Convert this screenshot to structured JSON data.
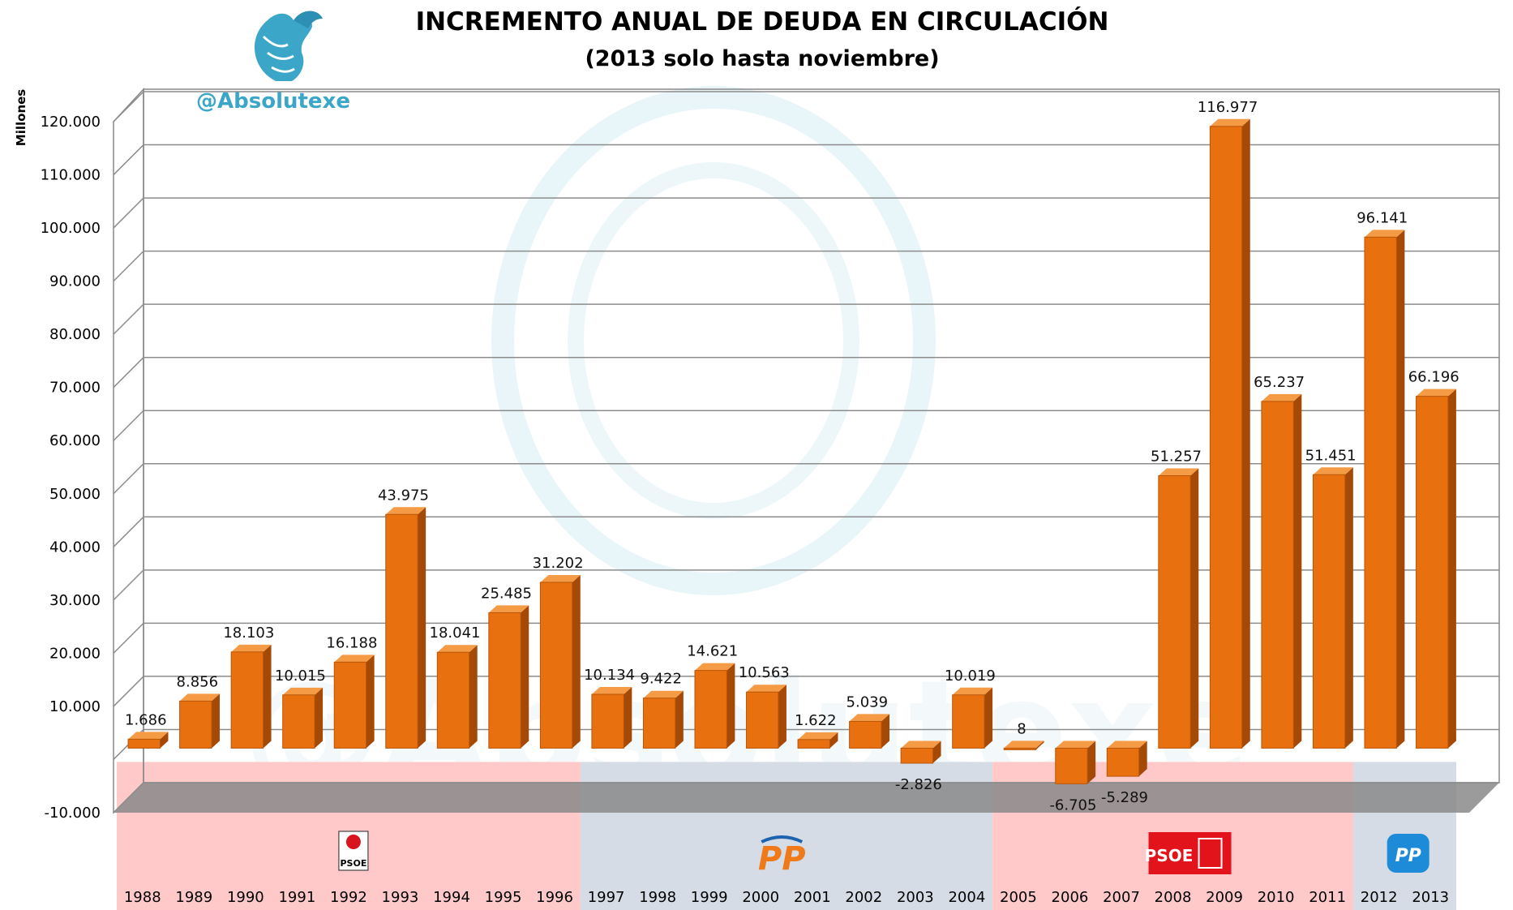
{
  "chart_data": {
    "type": "bar",
    "title": "INCREMENTO ANUAL DE DEUDA EN CIRCULACIÓN",
    "subtitle": "(2013 solo hasta noviembre)",
    "ylabel": "Millones",
    "xlabel": "",
    "ylim": [
      -10000,
      120000
    ],
    "yticks": [
      -10000,
      10000,
      20000,
      30000,
      40000,
      50000,
      60000,
      70000,
      80000,
      90000,
      100000,
      110000,
      120000
    ],
    "ytick_labels": [
      "-10.000",
      "10.000",
      "20.000",
      "30.000",
      "40.000",
      "50.000",
      "60.000",
      "70.000",
      "80.000",
      "90.000",
      "100.000",
      "110.000",
      "120.000"
    ],
    "grid": true,
    "categories": [
      "1988",
      "1989",
      "1990",
      "1991",
      "1992",
      "1993",
      "1994",
      "1995",
      "1996",
      "1997",
      "1998",
      "1999",
      "2000",
      "2001",
      "2002",
      "2003",
      "2004",
      "2005",
      "2006",
      "2007",
      "2008",
      "2009",
      "2010",
      "2011",
      "2012",
      "2013"
    ],
    "values": [
      1686,
      8856,
      18103,
      10015,
      16188,
      43975,
      18041,
      25485,
      31202,
      10134,
      9422,
      14621,
      10563,
      1622,
      5039,
      -2826,
      10019,
      8,
      -6705,
      -5289,
      51257,
      116977,
      65237,
      51451,
      96141,
      66196
    ],
    "data_labels": [
      "1.686",
      "8.856",
      "18.103",
      "10.015",
      "16.188",
      "43.975",
      "18.041",
      "25.485",
      "31.202",
      "10.134",
      "9.422",
      "14.621",
      "10.563",
      "1.622",
      "5.039",
      "-2.826",
      "10.019",
      "8",
      "-6.705",
      "-5.289",
      "51.257",
      "116.977",
      "65.237",
      "51.451",
      "96.141",
      "66.196"
    ],
    "bar_color": "#E8700F",
    "periods": [
      {
        "party": "PSOE",
        "from": "1988",
        "to": "1996",
        "color": "#FFC9C9",
        "logo_text": "PSOE"
      },
      {
        "party": "PP",
        "from": "1997",
        "to": "2004",
        "color": "#D5DCE6",
        "logo_text": "PP"
      },
      {
        "party": "PSOE",
        "from": "2005",
        "to": "2011",
        "color": "#FFC9C9",
        "logo_text": "PSOE"
      },
      {
        "party": "PP",
        "from": "2012",
        "to": "2013",
        "color": "#D5DCE6",
        "logo_text": "PP"
      }
    ]
  },
  "watermark": {
    "handle": "@Absolutexe",
    "handle_color": "#3BA6C8",
    "icon": "griffin-icon"
  }
}
